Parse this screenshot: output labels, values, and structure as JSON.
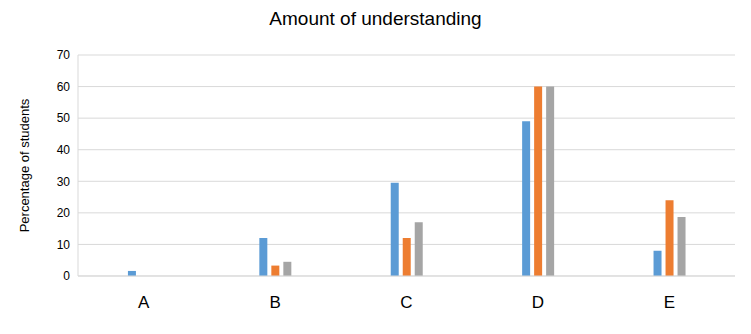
{
  "chart_data": {
    "type": "bar",
    "title": "Amount of understanding",
    "y_label": "Percentage of students",
    "categories": [
      "A",
      "B",
      "C",
      "D",
      "E"
    ],
    "series": [
      {
        "color": "#5b9bd5",
        "values": [
          1.6,
          12,
          29.5,
          49,
          8
        ]
      },
      {
        "color": "#ed7d31",
        "values": [
          0,
          3.3,
          12,
          60,
          24
        ]
      },
      {
        "color": "#a5a5a5",
        "values": [
          0,
          4.5,
          17,
          60,
          18.7
        ]
      }
    ],
    "ylim": [
      0,
      70
    ],
    "yticks": [
      0,
      10,
      20,
      30,
      40,
      50,
      60,
      70
    ],
    "grid": true
  }
}
